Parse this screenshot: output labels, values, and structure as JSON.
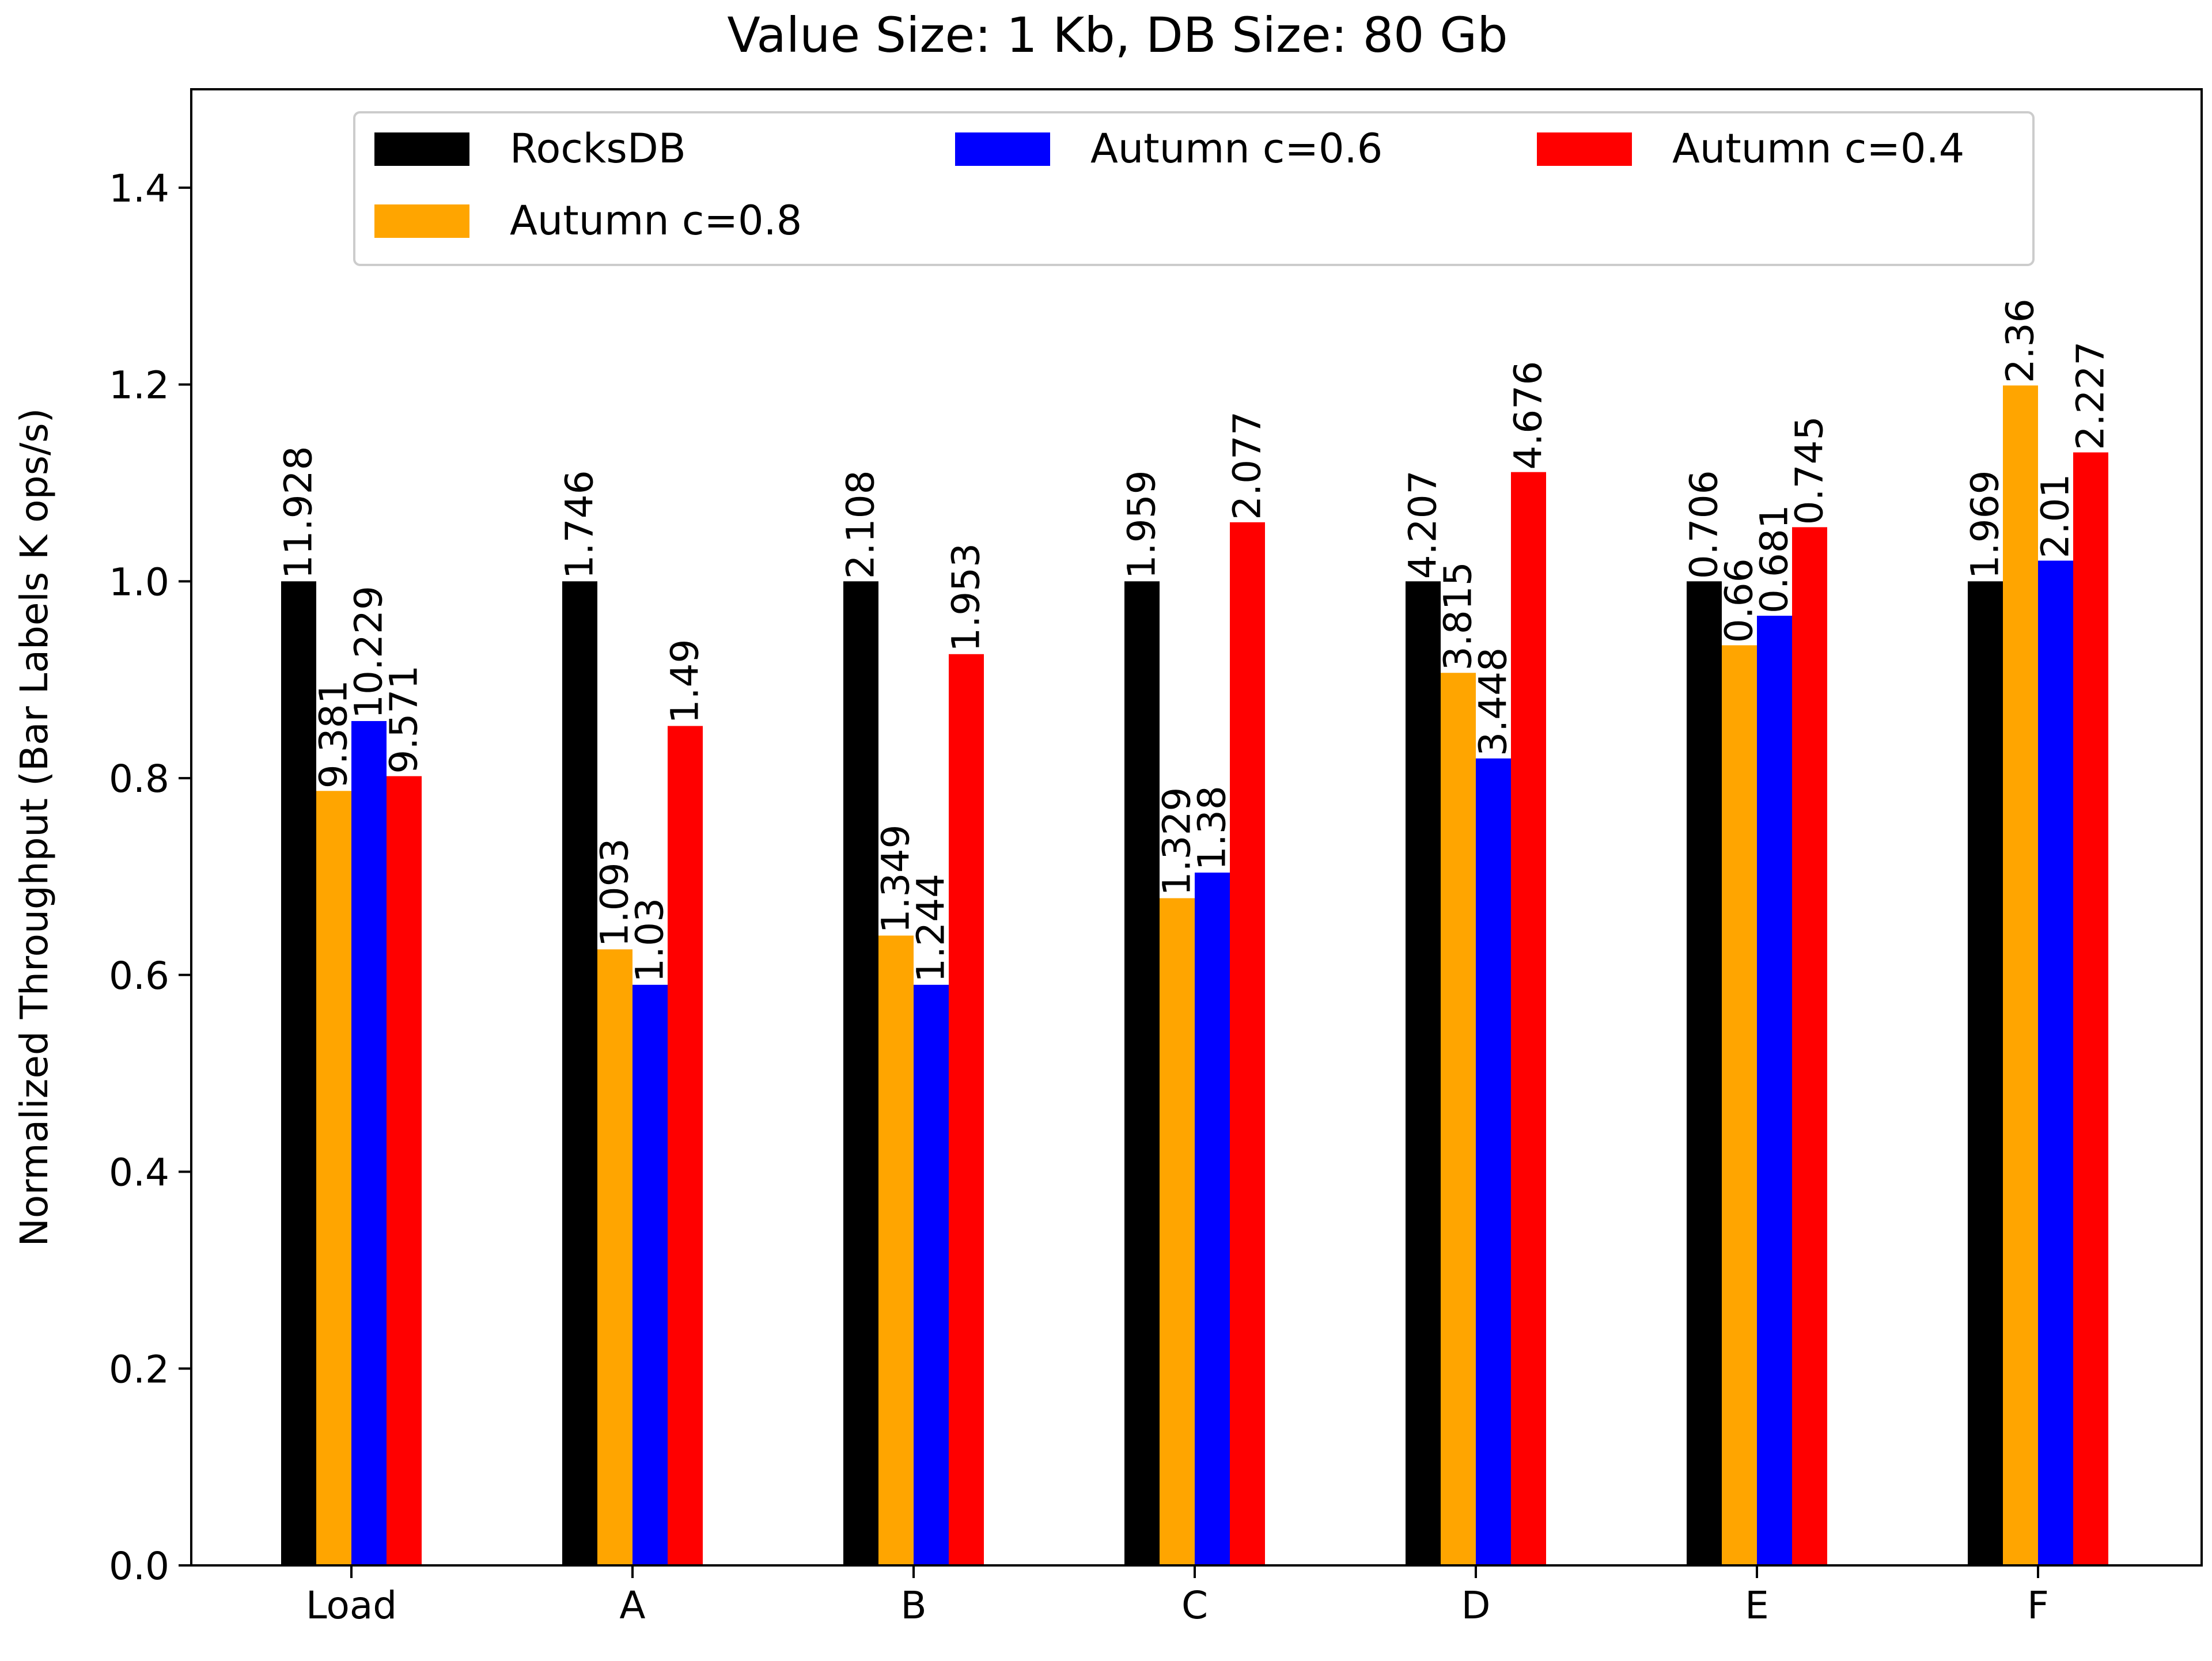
{
  "chart_data": {
    "type": "bar",
    "title": "Value Size: 1 Kb, DB Size: 80 Gb",
    "xlabel": "",
    "ylabel": "Normalized Throughput (Bar Labels K ops/s)",
    "ylim": [
      0,
      1.5
    ],
    "yticks": [
      0.0,
      0.2,
      0.4,
      0.6,
      0.8,
      1.0,
      1.2,
      1.4
    ],
    "ytick_labels": [
      "0.0",
      "0.2",
      "0.4",
      "0.6",
      "0.8",
      "1.0",
      "1.2",
      "1.4"
    ],
    "categories": [
      "Load",
      "A",
      "B",
      "C",
      "D",
      "E",
      "F"
    ],
    "grid": false,
    "legend_position": "top",
    "series": [
      {
        "name": "RocksDB",
        "color": "#000000",
        "values": [
          1.0,
          1.0,
          1.0,
          1.0,
          1.0,
          1.0,
          1.0
        ],
        "labels": [
          "11.928",
          "1.746",
          "2.108",
          "1.959",
          "4.207",
          "0.706",
          "1.969"
        ]
      },
      {
        "name": "Autumn c=0.8",
        "color": "#ffa500",
        "values": [
          0.787,
          0.626,
          0.64,
          0.678,
          0.907,
          0.935,
          1.199
        ],
        "labels": [
          "9.381",
          "1.093",
          "1.349",
          "1.329",
          "3.815",
          "0.66",
          "2.36"
        ]
      },
      {
        "name": "Autumn c=0.6",
        "color": "#0000ff",
        "values": [
          0.858,
          0.59,
          0.59,
          0.704,
          0.82,
          0.965,
          1.021
        ],
        "labels": [
          "10.229",
          "1.03",
          "1.244",
          "1.38",
          "3.448",
          "0.681",
          "2.01"
        ]
      },
      {
        "name": "Autumn c=0.4",
        "color": "#ff0000",
        "values": [
          0.802,
          0.853,
          0.926,
          1.06,
          1.111,
          1.055,
          1.131
        ],
        "labels": [
          "9.571",
          "1.49",
          "1.953",
          "2.077",
          "4.676",
          "0.745",
          "2.227"
        ]
      }
    ]
  }
}
